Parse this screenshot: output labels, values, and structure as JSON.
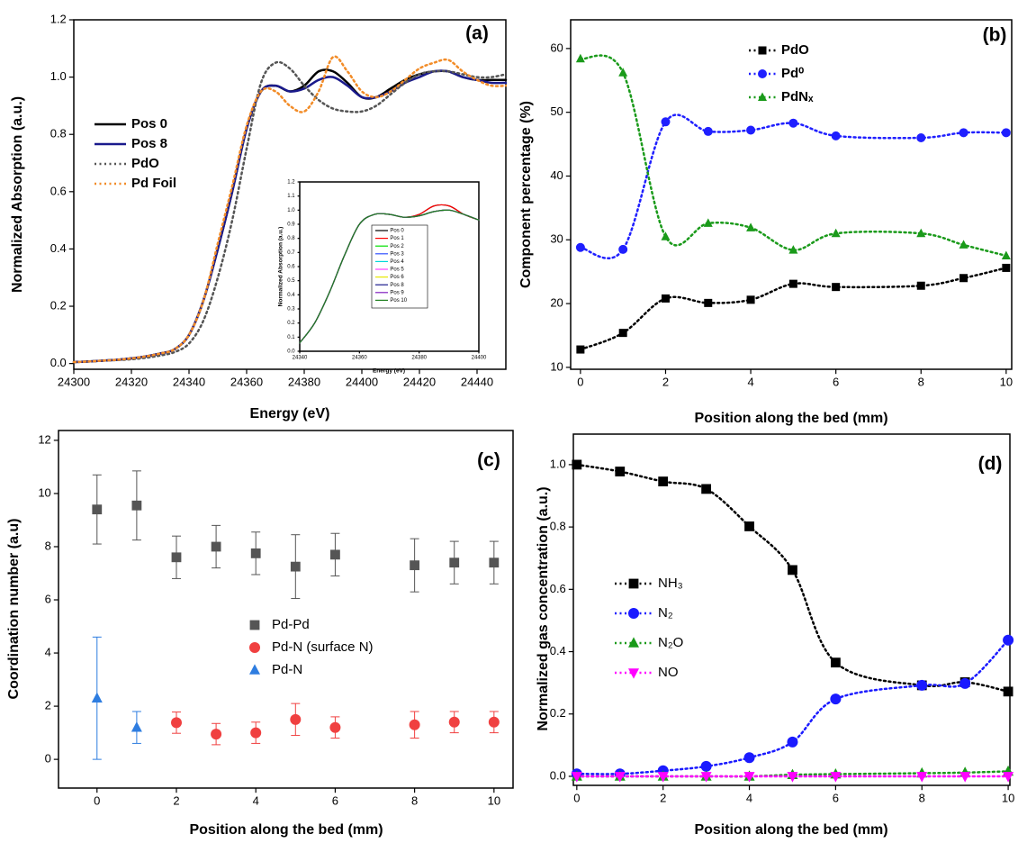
{
  "chart_data": [
    {
      "type": "line",
      "panel_label": "(a)",
      "x_label": "Energy (eV)",
      "y_label": "Normalized Absorption (a.u.)",
      "xlim": [
        24300,
        24450
      ],
      "ylim": [
        -0.02,
        1.2
      ],
      "xticks": [
        24300,
        24320,
        24340,
        24360,
        24380,
        24400,
        24420,
        24440
      ],
      "yticks": [
        {
          "value": 0,
          "label": "0.0"
        },
        {
          "value": 0.2,
          "label": "0.2"
        },
        {
          "value": 0.4,
          "label": "0.4"
        },
        {
          "value": 0.6,
          "label": "0.6"
        },
        {
          "value": 0.8,
          "label": "0.8"
        },
        {
          "value": 1,
          "label": "1.0"
        },
        {
          "value": 1.2,
          "label": "1.2"
        }
      ],
      "x": [
        24300,
        24305,
        24310,
        24315,
        24320,
        24325,
        24330,
        24335,
        24340,
        24345,
        24350,
        24355,
        24360,
        24365,
        24370,
        24375,
        24380,
        24385,
        24390,
        24395,
        24400,
        24405,
        24410,
        24415,
        24420,
        24425,
        24430,
        24435,
        24440,
        24445,
        24450
      ],
      "series": [
        {
          "name": "Pos 0",
          "color": "#000000",
          "line_style": "solid",
          "values": [
            0.005,
            0.007,
            0.01,
            0.013,
            0.018,
            0.025,
            0.035,
            0.05,
            0.1,
            0.22,
            0.4,
            0.6,
            0.82,
            0.95,
            0.97,
            0.95,
            0.97,
            1.02,
            1.02,
            0.98,
            0.93,
            0.93,
            0.96,
            0.99,
            1.01,
            1.02,
            1.02,
            1.0,
            0.99,
            0.99,
            0.99
          ]
        },
        {
          "name": "Pos 8",
          "color": "#1a1a8c",
          "line_style": "solid",
          "values": [
            0.005,
            0.007,
            0.01,
            0.013,
            0.018,
            0.025,
            0.035,
            0.05,
            0.1,
            0.22,
            0.4,
            0.6,
            0.82,
            0.95,
            0.97,
            0.95,
            0.96,
            0.99,
            1.0,
            0.97,
            0.93,
            0.93,
            0.95,
            0.98,
            1.0,
            1.02,
            1.02,
            1.0,
            0.99,
            0.98,
            0.98
          ]
        },
        {
          "name": "PdO",
          "color": "#555555",
          "line_style": "dotted",
          "values": [
            0.005,
            0.007,
            0.01,
            0.012,
            0.015,
            0.02,
            0.028,
            0.04,
            0.07,
            0.15,
            0.3,
            0.5,
            0.75,
            0.98,
            1.05,
            1.03,
            0.97,
            0.92,
            0.89,
            0.88,
            0.88,
            0.9,
            0.94,
            0.98,
            1.01,
            1.02,
            1.02,
            1.01,
            1.0,
            1.0,
            1.01
          ]
        },
        {
          "name": "Pd Foil",
          "color": "#f28c28",
          "line_style": "dotted",
          "values": [
            0.005,
            0.007,
            0.01,
            0.013,
            0.018,
            0.025,
            0.035,
            0.05,
            0.1,
            0.22,
            0.42,
            0.62,
            0.83,
            0.95,
            0.95,
            0.9,
            0.88,
            0.95,
            1.07,
            1.02,
            0.95,
            0.93,
            0.95,
            0.99,
            1.03,
            1.05,
            1.06,
            1.02,
            0.99,
            0.97,
            0.97
          ]
        }
      ]
    },
    {
      "type": "line",
      "x_label": "Energy (eV)",
      "y_label": "Normalized Absorption (a.u.)",
      "xlim": [
        24340,
        24400
      ],
      "ylim": [
        0,
        1.2
      ],
      "xticks": [
        24340,
        24360,
        24380,
        24400
      ],
      "yticks": [
        {
          "value": 0,
          "label": "0.0"
        },
        {
          "value": 0.1,
          "label": "0.1"
        },
        {
          "value": 0.2,
          "label": "0.2"
        },
        {
          "value": 0.3,
          "label": "0.3"
        },
        {
          "value": 0.4,
          "label": "0.4"
        },
        {
          "value": 0.5,
          "label": "0.5"
        },
        {
          "value": 0.6,
          "label": "0.6"
        },
        {
          "value": 0.7,
          "label": "0.7"
        },
        {
          "value": 0.8,
          "label": "0.8"
        },
        {
          "value": 0.9,
          "label": "0.9"
        },
        {
          "value": 1,
          "label": "1.0"
        },
        {
          "value": 1.1,
          "label": "1.1"
        },
        {
          "value": 1.2,
          "label": "1.2"
        }
      ],
      "x": [
        24340,
        24345,
        24350,
        24355,
        24360,
        24365,
        24370,
        24375,
        24380,
        24385,
        24390,
        24395,
        24400
      ],
      "series": [
        {
          "name": "Pos 0",
          "color": "#000000",
          "line_style": "solid",
          "values": [
            0.06,
            0.2,
            0.42,
            0.68,
            0.9,
            0.97,
            0.97,
            0.95,
            0.97,
            1.03,
            1.03,
            0.97,
            0.93
          ]
        },
        {
          "name": "Pos 1",
          "color": "#ff0000",
          "line_style": "solid",
          "values": [
            0.06,
            0.2,
            0.42,
            0.68,
            0.9,
            0.97,
            0.97,
            0.95,
            0.97,
            1.03,
            1.03,
            0.97,
            0.93
          ]
        },
        {
          "name": "Pos 2",
          "color": "#00e000",
          "line_style": "solid",
          "values": [
            0.06,
            0.2,
            0.42,
            0.68,
            0.9,
            0.97,
            0.97,
            0.95,
            0.96,
            0.99,
            1.0,
            0.97,
            0.93
          ]
        },
        {
          "name": "Pos 3",
          "color": "#3050ff",
          "line_style": "solid",
          "values": [
            0.06,
            0.2,
            0.42,
            0.68,
            0.9,
            0.97,
            0.97,
            0.95,
            0.96,
            0.99,
            1.0,
            0.97,
            0.93
          ]
        },
        {
          "name": "Pos 4",
          "color": "#00d8d8",
          "line_style": "solid",
          "values": [
            0.06,
            0.2,
            0.42,
            0.68,
            0.9,
            0.97,
            0.97,
            0.95,
            0.96,
            0.99,
            1.0,
            0.97,
            0.93
          ]
        },
        {
          "name": "Pos 5",
          "color": "#ff40ff",
          "line_style": "solid",
          "values": [
            0.06,
            0.2,
            0.42,
            0.68,
            0.9,
            0.97,
            0.97,
            0.95,
            0.96,
            0.99,
            1.0,
            0.97,
            0.93
          ]
        },
        {
          "name": "Pos 6",
          "color": "#e8e800",
          "line_style": "solid",
          "values": [
            0.06,
            0.2,
            0.42,
            0.68,
            0.9,
            0.97,
            0.97,
            0.95,
            0.96,
            0.99,
            1.0,
            0.97,
            0.93
          ]
        },
        {
          "name": "Pos 8",
          "color": "#1a1a8c",
          "line_style": "solid",
          "values": [
            0.06,
            0.2,
            0.42,
            0.68,
            0.9,
            0.97,
            0.97,
            0.95,
            0.96,
            0.99,
            1.0,
            0.97,
            0.93
          ]
        },
        {
          "name": "Pos 9",
          "color": "#8020c0",
          "line_style": "solid",
          "values": [
            0.06,
            0.2,
            0.42,
            0.68,
            0.9,
            0.97,
            0.97,
            0.95,
            0.96,
            0.99,
            1.0,
            0.97,
            0.93
          ]
        },
        {
          "name": "Pos 10",
          "color": "#208020",
          "line_style": "solid",
          "values": [
            0.06,
            0.2,
            0.42,
            0.68,
            0.9,
            0.97,
            0.97,
            0.95,
            0.96,
            0.99,
            1.0,
            0.97,
            0.93
          ]
        }
      ]
    },
    {
      "type": "scatter",
      "panel_label": "(b)",
      "x_label": "Position along the bed (mm)",
      "y_label": "Component percentage (%)",
      "xlim": [
        -0.23,
        10.13
      ],
      "ylim": [
        9.7,
        64.5
      ],
      "xticks": [
        0,
        2,
        4,
        6,
        8,
        10
      ],
      "yticks": [
        10,
        20,
        30,
        40,
        50,
        60
      ],
      "x": [
        0,
        1,
        2,
        3,
        4,
        5,
        6,
        8,
        9,
        10
      ],
      "series": [
        {
          "name": "PdO",
          "color": "#000000",
          "marker": "square",
          "line_style": "dotted",
          "values": [
            12.8,
            15.4,
            20.8,
            20.1,
            20.6,
            23.1,
            22.6,
            22.8,
            24.0,
            25.6
          ]
        },
        {
          "name": "Pd⁰",
          "color": "#1f1fff",
          "marker": "circle",
          "line_style": "dotted",
          "values": [
            28.8,
            28.5,
            48.5,
            47.0,
            47.2,
            48.3,
            46.3,
            46.0,
            46.8,
            46.8
          ]
        },
        {
          "name": "PdNₓ",
          "color": "#1a9a1a",
          "marker": "triangle",
          "line_style": "dotted",
          "values": [
            58.4,
            56.2,
            30.5,
            32.6,
            31.9,
            28.4,
            31.0,
            31.0,
            29.2,
            27.5
          ]
        }
      ]
    },
    {
      "type": "scatter",
      "panel_label": "(c)",
      "x_label": "Position along the bed (mm)",
      "y_label": "Coordination number (a.u)",
      "xlim": [
        -0.97,
        10.48
      ],
      "ylim": [
        -1.08,
        12.37
      ],
      "xticks": [
        0,
        2,
        4,
        6,
        8,
        10
      ],
      "yticks": [
        0,
        2,
        4,
        6,
        8,
        10,
        12
      ],
      "series": [
        {
          "name": "Pd-Pd",
          "color": "#555555",
          "marker": "square",
          "x": [
            0,
            1,
            2,
            3,
            4,
            5,
            6,
            8,
            9,
            10
          ],
          "values": [
            9.4,
            9.55,
            7.6,
            8.0,
            7.75,
            7.25,
            7.7,
            7.3,
            7.4,
            7.4
          ],
          "errors": [
            1.3,
            1.3,
            0.8,
            0.8,
            0.8,
            1.2,
            0.8,
            1.0,
            0.8,
            0.8
          ]
        },
        {
          "name": "Pd-N (surface N)",
          "color": "#f04040",
          "marker": "circle",
          "x": [
            2,
            3,
            4,
            5,
            6,
            8,
            9,
            10
          ],
          "values": [
            1.38,
            0.95,
            1.0,
            1.5,
            1.2,
            1.3,
            1.4,
            1.4
          ],
          "errors": [
            0.4,
            0.4,
            0.4,
            0.6,
            0.4,
            0.5,
            0.4,
            0.4
          ]
        },
        {
          "name": "Pd-N",
          "color": "#2e7de0",
          "marker": "triangle",
          "x": [
            0,
            1
          ],
          "values": [
            2.3,
            1.2
          ],
          "errors": [
            2.3,
            0.6
          ]
        }
      ]
    },
    {
      "type": "scatter",
      "panel_label": "(d)",
      "x_label": "Position along the bed (mm)",
      "y_label": "Normalized gas concentration (a.u.)",
      "xlim": [
        -0.08,
        10.04
      ],
      "ylim": [
        -0.029,
        1.098
      ],
      "xticks": [
        0,
        2,
        4,
        6,
        8,
        10
      ],
      "yticks": [
        {
          "value": 0,
          "label": "0.0"
        },
        {
          "value": 0.2,
          "label": "0.2"
        },
        {
          "value": 0.4,
          "label": "0.4"
        },
        {
          "value": 0.6,
          "label": "0.6"
        },
        {
          "value": 0.8,
          "label": "0.8"
        },
        {
          "value": 1,
          "label": "1.0"
        }
      ],
      "x": [
        0,
        1,
        2,
        3,
        4,
        5,
        6,
        8,
        9,
        10
      ],
      "series": [
        {
          "name": "NH₃",
          "color": "#000000",
          "marker": "square",
          "line_style": "dotted",
          "values": [
            1.0,
            0.978,
            0.946,
            0.922,
            0.802,
            0.662,
            0.365,
            0.292,
            0.302,
            0.272
          ]
        },
        {
          "name": "N₂",
          "color": "#1a1aff",
          "marker": "circle",
          "line_style": "dotted",
          "values": [
            0.008,
            0.008,
            0.018,
            0.032,
            0.06,
            0.11,
            0.248,
            0.292,
            0.298,
            0.437
          ]
        },
        {
          "name": "N₂O",
          "color": "#1a9a1a",
          "marker": "triangle",
          "line_style": "dotted",
          "values": [
            0,
            0,
            0,
            0,
            0,
            0.005,
            0.007,
            0.01,
            0.012,
            0.016
          ]
        },
        {
          "name": "NO",
          "color": "#ff00ff",
          "marker": "triangle-down",
          "line_style": "dotted",
          "values": [
            0,
            0,
            0,
            0,
            0,
            0,
            0,
            0,
            0,
            0
          ]
        }
      ]
    }
  ]
}
